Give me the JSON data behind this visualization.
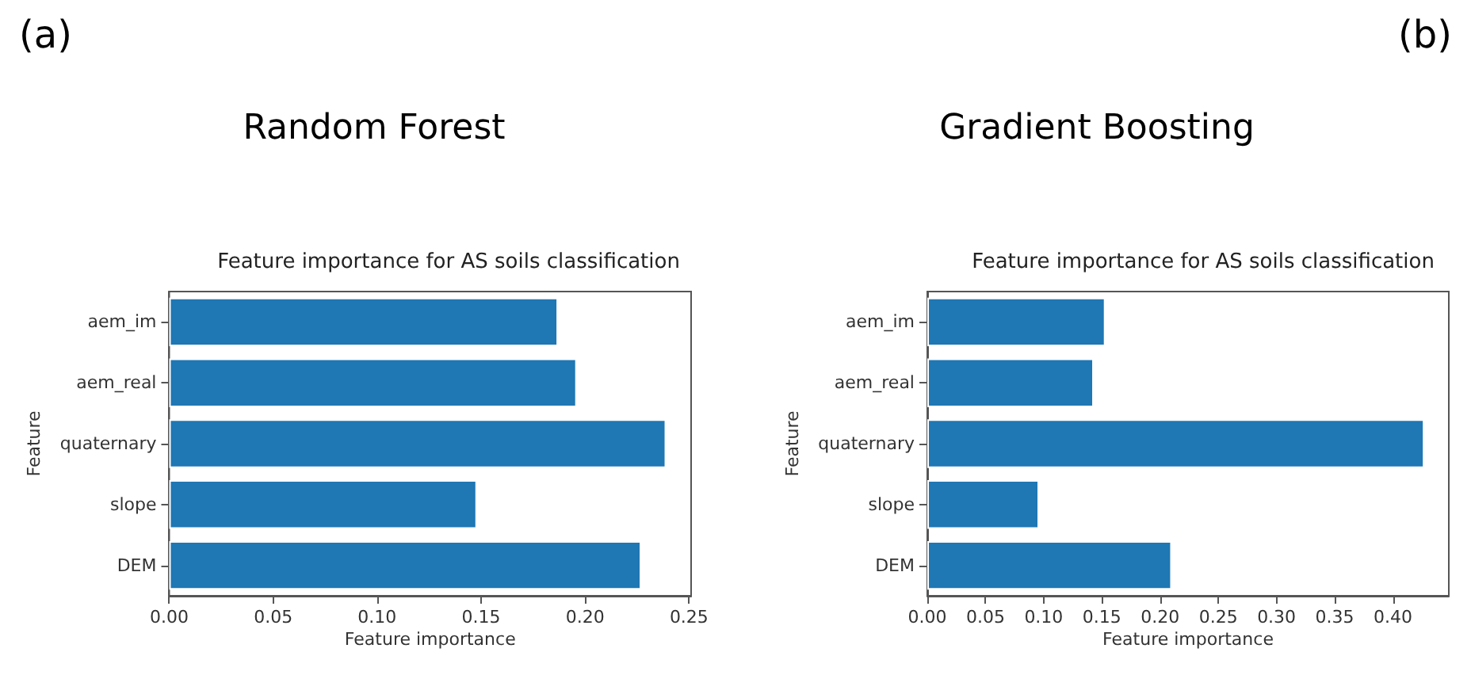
{
  "chart_data": [
    {
      "type": "bar",
      "orientation": "horizontal",
      "title": "Feature importance for AS soils classification",
      "annotations": [
        "(a)",
        "Random Forest"
      ],
      "xlabel": "Feature importance",
      "ylabel": "Feature",
      "categories": [
        "aem_im",
        "aem_real",
        "quaternary",
        "slope",
        "DEM"
      ],
      "values": [
        0.187,
        0.196,
        0.239,
        0.148,
        0.227
      ],
      "color": "#1f77b4",
      "xlim": [
        0,
        0.251
      ],
      "xticks": [
        {
          "value": 0,
          "label": "0.00"
        },
        {
          "value": 0.05,
          "label": "0.05"
        },
        {
          "value": 0.1,
          "label": "0.10"
        },
        {
          "value": 0.15,
          "label": "0.15"
        },
        {
          "value": 0.2,
          "label": "0.20"
        },
        {
          "value": 0.25,
          "label": "0.25"
        }
      ],
      "grid": false
    },
    {
      "type": "bar",
      "orientation": "horizontal",
      "title": "Feature importance for AS soils classification",
      "annotations": [
        "(b)",
        "Gradient Boosting"
      ],
      "xlabel": "Feature importance",
      "ylabel": "Feature",
      "categories": [
        "aem_im",
        "aem_real",
        "quaternary",
        "slope",
        "DEM"
      ],
      "values": [
        0.153,
        0.143,
        0.427,
        0.096,
        0.21
      ],
      "color": "#1f77b4",
      "xlim": [
        0,
        0.448
      ],
      "xticks": [
        {
          "value": 0,
          "label": "0.00"
        },
        {
          "value": 0.05,
          "label": "0.05"
        },
        {
          "value": 0.1,
          "label": "0.10"
        },
        {
          "value": 0.15,
          "label": "0.15"
        },
        {
          "value": 0.2,
          "label": "0.20"
        },
        {
          "value": 0.25,
          "label": "0.25"
        },
        {
          "value": 0.3,
          "label": "0.30"
        },
        {
          "value": 0.35,
          "label": "0.35"
        },
        {
          "value": 0.4,
          "label": "0.40"
        }
      ],
      "grid": false
    }
  ]
}
